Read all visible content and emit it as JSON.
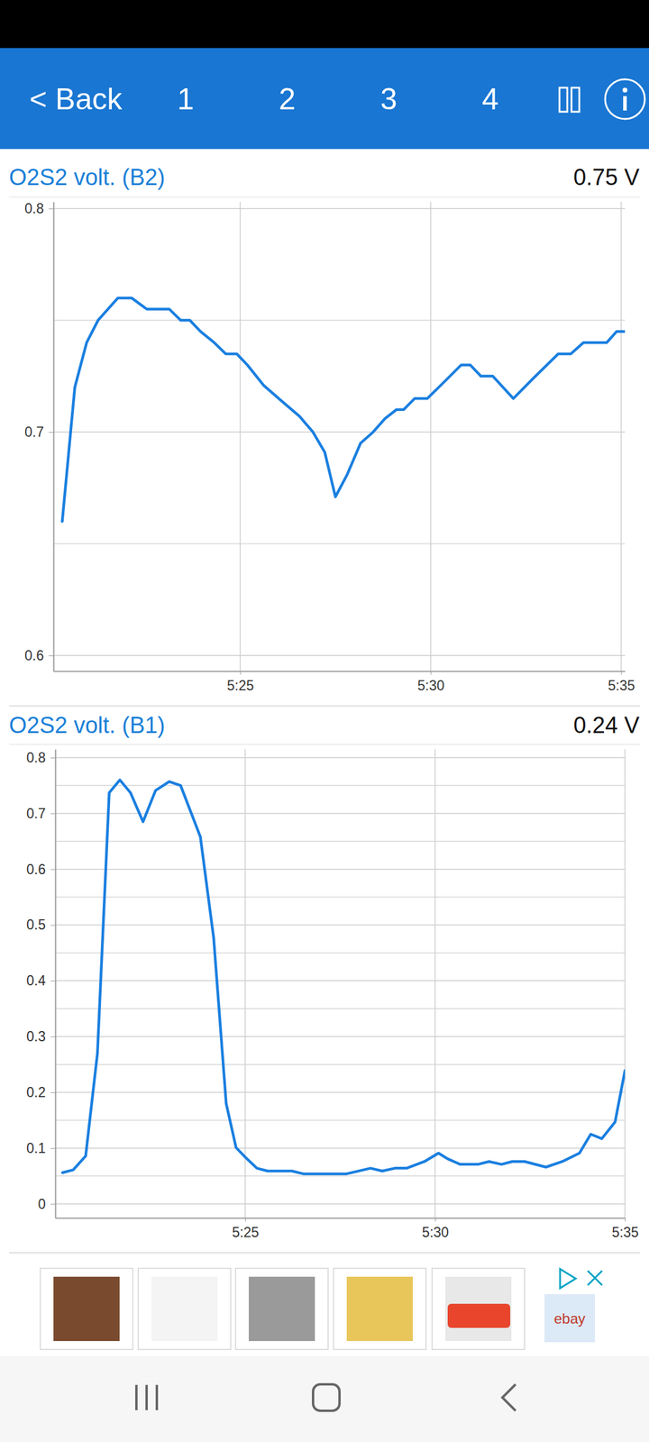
{
  "header": {
    "back": "< Back",
    "tabs": [
      "1",
      "2",
      "3",
      "4"
    ]
  },
  "chart_data": [
    {
      "type": "line",
      "title": "O2S2 volt. (B2)",
      "current_value": "0.75 V",
      "color": "#1a7fe0",
      "grid": true,
      "x": [
        320.33,
        320.66,
        320.97,
        321.27,
        321.79,
        322.15,
        322.55,
        323.14,
        323.44,
        323.68,
        323.96,
        324.32,
        324.62,
        324.91,
        325.19,
        325.61,
        326.08,
        326.56,
        326.91,
        327.22,
        327.5,
        327.81,
        328.16,
        328.49,
        328.8,
        329.1,
        329.29,
        329.58,
        329.91,
        330.33,
        330.8,
        331.04,
        331.32,
        331.63,
        332.17,
        332.69,
        333.35,
        333.68,
        334.01,
        334.62,
        334.88,
        335.19
      ],
      "values": [
        0.66,
        0.72,
        0.74,
        0.75,
        0.76,
        0.76,
        0.755,
        0.755,
        0.75,
        0.75,
        0.745,
        0.74,
        0.735,
        0.735,
        0.73,
        0.721,
        0.714,
        0.707,
        0.7,
        0.691,
        0.671,
        0.681,
        0.695,
        0.7,
        0.706,
        0.71,
        0.71,
        0.715,
        0.715,
        0.722,
        0.73,
        0.73,
        0.725,
        0.725,
        0.715,
        0.724,
        0.735,
        0.735,
        0.74,
        0.74,
        0.745,
        0.745
      ],
      "xlim": [
        320.1,
        335.1
      ],
      "xticks": [
        {
          "value": 325,
          "label": "5:25"
        },
        {
          "value": 330,
          "label": "5:30"
        },
        {
          "value": 335,
          "label": "5:35"
        }
      ],
      "ylim": [
        0.593,
        0.803
      ],
      "yticks": [
        0.6,
        0.7,
        0.8
      ],
      "yminor_ticks": [
        0.65,
        0.75
      ]
    },
    {
      "type": "line",
      "title": "O2S2 volt. (B1)",
      "current_value": "0.24 V",
      "color": "#1a7fe0",
      "grid": true,
      "x": [
        320.19,
        320.47,
        320.8,
        321.11,
        321.42,
        321.7,
        321.98,
        322.31,
        322.64,
        323.0,
        323.3,
        323.82,
        324.17,
        324.5,
        324.76,
        325.0,
        325.31,
        325.59,
        326.23,
        326.53,
        327.67,
        328.3,
        328.61,
        328.94,
        329.25,
        329.72,
        330.09,
        330.33,
        330.66,
        331.13,
        331.42,
        331.75,
        332.03,
        332.36,
        332.92,
        333.35,
        333.8,
        334.1,
        334.39,
        334.74,
        335.0
      ],
      "values": [
        0.056,
        0.061,
        0.086,
        0.27,
        0.737,
        0.76,
        0.737,
        0.685,
        0.741,
        0.757,
        0.75,
        0.658,
        0.477,
        0.18,
        0.101,
        0.084,
        0.064,
        0.059,
        0.059,
        0.054,
        0.054,
        0.064,
        0.059,
        0.064,
        0.064,
        0.076,
        0.091,
        0.081,
        0.071,
        0.071,
        0.076,
        0.071,
        0.076,
        0.076,
        0.066,
        0.076,
        0.091,
        0.125,
        0.117,
        0.147,
        0.239
      ],
      "xlim": [
        320.0,
        335.0
      ],
      "xticks": [
        {
          "value": 325,
          "label": "5:25"
        },
        {
          "value": 330,
          "label": "5:30"
        },
        {
          "value": 335,
          "label": "5:35"
        }
      ],
      "ylim": [
        -0.025,
        0.815
      ],
      "yticks": [
        0,
        0.1,
        0.2,
        0.3,
        0.4,
        0.5,
        0.6,
        0.7,
        0.8
      ],
      "yminor_ticks": [
        0.05,
        0.15,
        0.25,
        0.35,
        0.45,
        0.55,
        0.65,
        0.75
      ]
    }
  ],
  "ad": {
    "label": "ebay"
  }
}
